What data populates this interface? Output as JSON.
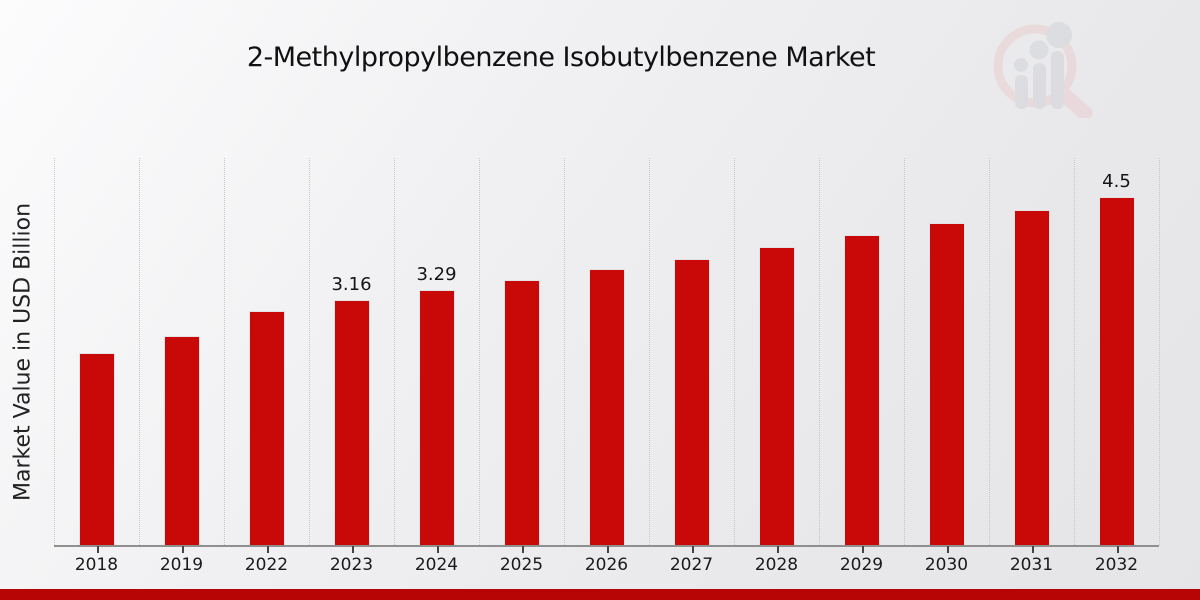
{
  "title": "2-Methylpropylbenzene Isobutylbenzene Market",
  "y_axis_label": "Market Value in USD Billion",
  "colors": {
    "bar_fill": "#c90808",
    "bar_edge": "#e3e3e3",
    "bottom_strip": "#b70404",
    "gridline": "#c6c6c8",
    "axis_line": "#8f8f8f",
    "text": "#1a1a1a",
    "background_light": "#fcfcfd",
    "background_dark": "#e5e5e7",
    "watermark_ring": "#e9cdd0",
    "watermark_bars": "#d2d3d8"
  },
  "watermark_icon": "magnifier-bar-chart-logo",
  "chart_data": {
    "type": "bar",
    "title": "2-Methylpropylbenzene Isobutylbenzene Market",
    "xlabel": "",
    "ylabel": "Market Value in USD Billion",
    "categories": [
      "2018",
      "2019",
      "2022",
      "2023",
      "2024",
      "2025",
      "2026",
      "2027",
      "2028",
      "2029",
      "2030",
      "2031",
      "2032"
    ],
    "values": [
      2.48,
      2.7,
      3.02,
      3.16,
      3.29,
      3.42,
      3.56,
      3.69,
      3.85,
      4.01,
      4.16,
      4.33,
      4.5
    ],
    "data_labels": [
      "",
      "",
      "",
      "3.16",
      "3.29",
      "",
      "",
      "",
      "",
      "",
      "",
      "",
      "4.5"
    ],
    "ylim": [
      0,
      5
    ],
    "bar_color": "#c90808",
    "grid": "vertical dotted category separators",
    "legend": "none",
    "y_axis_ticks_visible": false
  }
}
